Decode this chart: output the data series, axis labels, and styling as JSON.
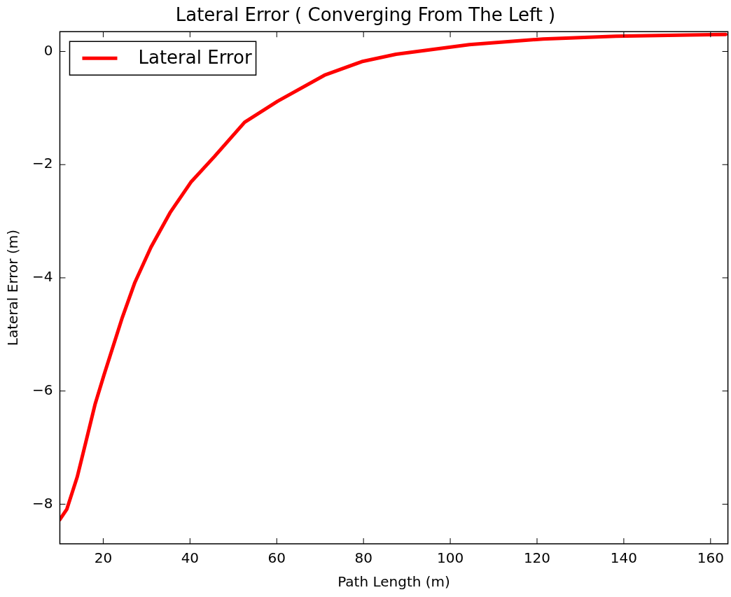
{
  "chart_data": {
    "type": "line",
    "title": "Lateral Error ( Converging From The Left )",
    "xlabel": "Path Length (m)",
    "ylabel": "Lateral Error (m)",
    "x": [
      10,
      11.6,
      14.0,
      16.0,
      18.1,
      20.2,
      22.9,
      24.4,
      27.3,
      31.0,
      35.4,
      40.2,
      45.6,
      52.6,
      60.2,
      71.0,
      79.6,
      87.5,
      104.4,
      121.4,
      138.2,
      155.1,
      163.5
    ],
    "series": [
      {
        "name": "Lateral Error",
        "color": "#ff0000",
        "values": [
          -8.27,
          -8.09,
          -7.52,
          -6.9,
          -6.24,
          -5.71,
          -5.06,
          -4.7,
          -4.08,
          -3.46,
          -2.85,
          -2.31,
          -1.86,
          -1.25,
          -0.88,
          -0.42,
          -0.18,
          -0.05,
          0.12,
          0.22,
          0.27,
          0.29,
          0.3
        ]
      }
    ],
    "xlim": [
      10,
      164
    ],
    "xticks": [
      20,
      40,
      60,
      80,
      100,
      120,
      140,
      160
    ],
    "ylim": [
      -8.7,
      0.35
    ],
    "yticks": [
      -8,
      -6,
      -4,
      -2,
      0
    ],
    "grid": false,
    "legend": "top left",
    "marker": "none",
    "line_style": "solid"
  }
}
